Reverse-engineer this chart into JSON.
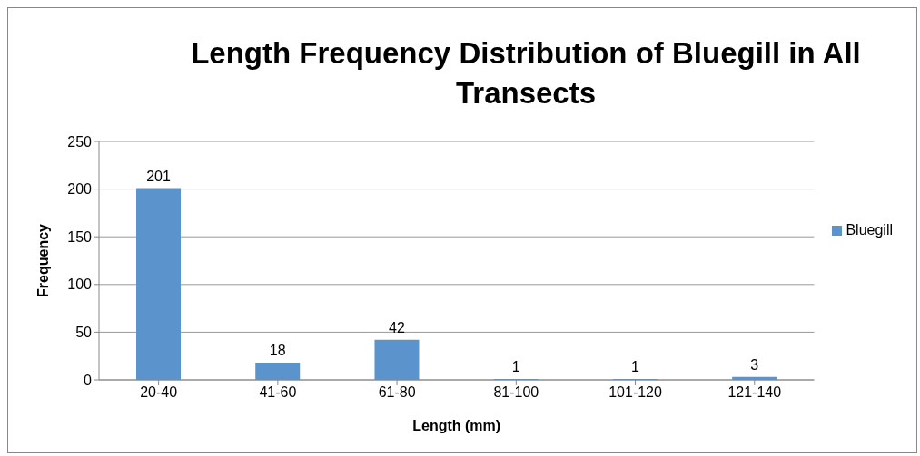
{
  "chart_data": {
    "type": "bar",
    "title": "Length Frequency Distribution of Bluegill in All Transects",
    "xlabel": "Length (mm)",
    "ylabel": "Frequency",
    "categories": [
      "20-40",
      "41-60",
      "61-80",
      "81-100",
      "101-120",
      "121-140"
    ],
    "series": [
      {
        "name": "Bluegill",
        "color": "#5b93cc",
        "values": [
          201,
          18,
          42,
          1,
          1,
          3
        ]
      }
    ],
    "ylim": [
      0,
      250
    ],
    "yticks": [
      0,
      50,
      100,
      150,
      200,
      250
    ],
    "grid": "y",
    "legend": "right",
    "data_labels": true
  }
}
